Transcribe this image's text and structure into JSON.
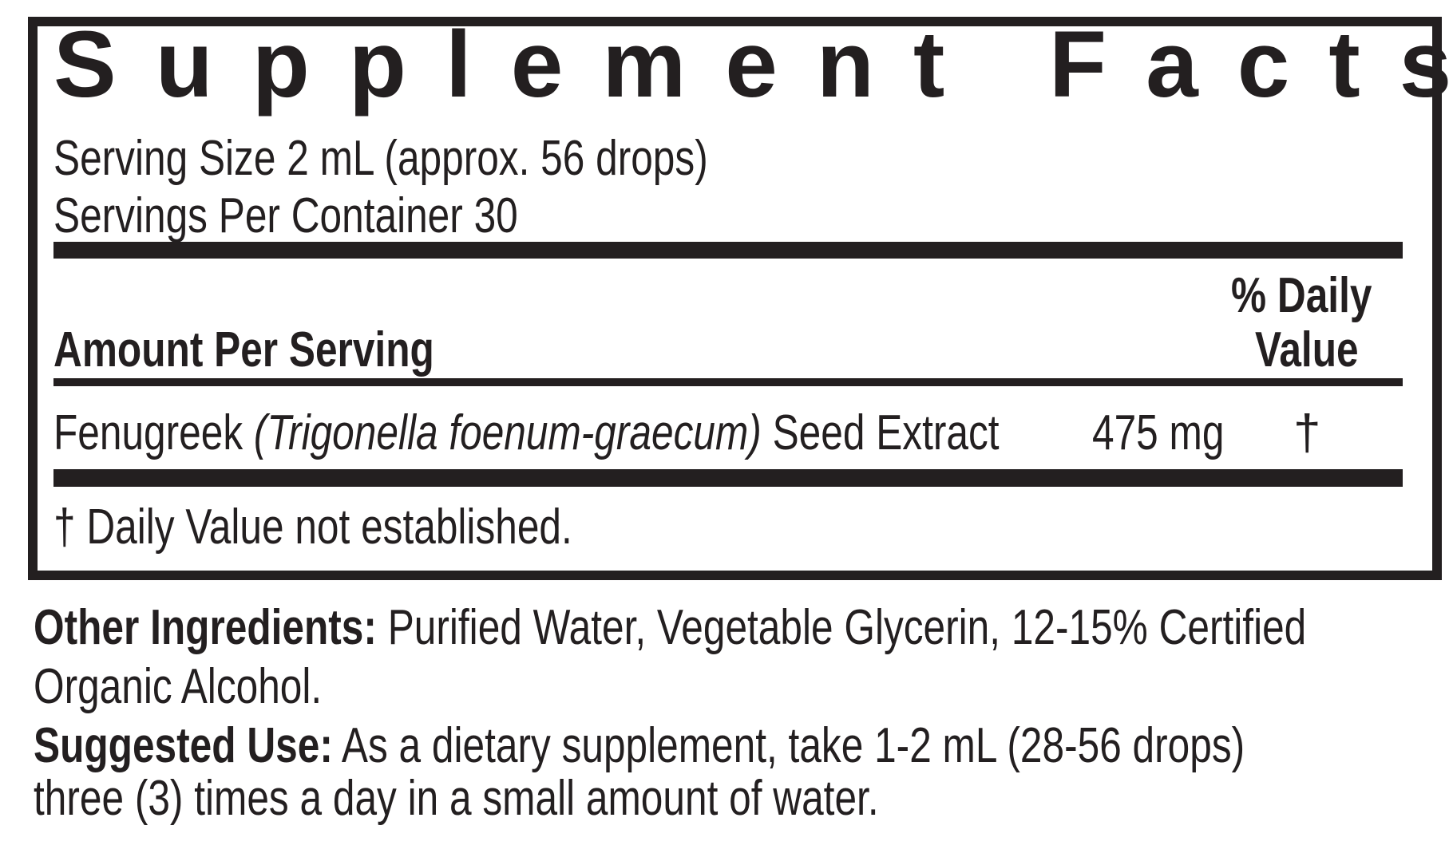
{
  "label": {
    "title": "Supplement Facts",
    "serving_size": "Serving Size 2 mL (approx. 56 drops)",
    "servings_per_container": "Servings Per Container 30",
    "amount_header": "Amount Per Serving",
    "dv_header_line1": "% Daily",
    "dv_header_line2": "Value",
    "ingredients": [
      {
        "name": "Fenugreek",
        "latin": "(Trigonella foenum-graecum)",
        "part": "Seed Extract",
        "amount": "475 mg",
        "dv": "†"
      }
    ],
    "footnote": "† Daily Value not established."
  },
  "other": {
    "other_label": "Other Ingredients:",
    "other_text_line1": "Purified Water,  Vegetable Glycerin, 12-15% Certified",
    "other_text_line2": "Organic Alcohol.",
    "use_label": "Suggested Use:",
    "use_text_line1": "As a dietary supplement, take 1-2 mL (28-56 drops)",
    "use_text_line2": "three (3) times a day in a small amount of water."
  },
  "colors": {
    "ink": "#231f20",
    "background": "#ffffff"
  }
}
